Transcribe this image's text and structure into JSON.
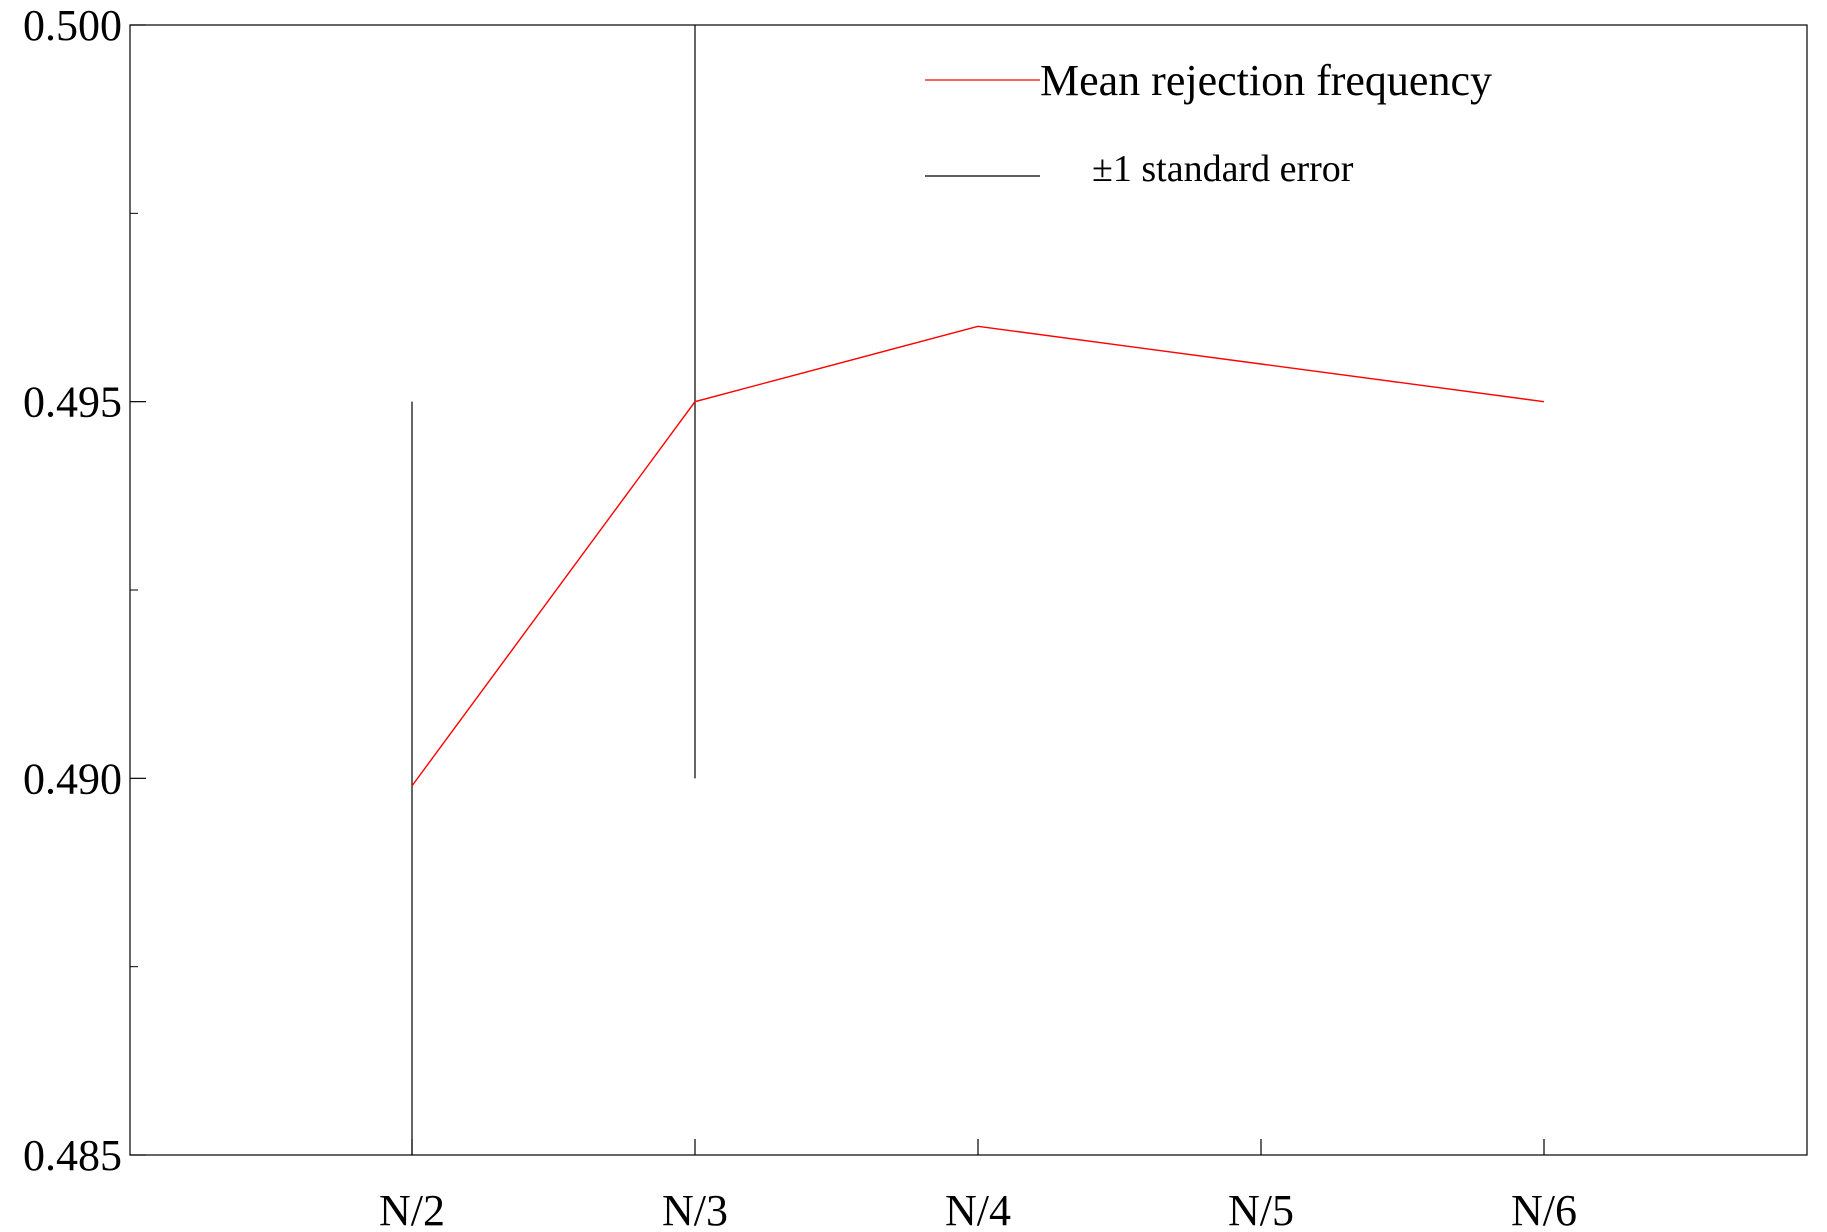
{
  "chart_data": {
    "type": "line",
    "title": "",
    "xlabel": "",
    "ylabel": "",
    "categories": [
      "N/2",
      "N/3",
      "N/4",
      "N/5",
      "N/6"
    ],
    "ylim": [
      0.485,
      0.5
    ],
    "yticks": [
      0.485,
      0.49,
      0.495,
      0.5
    ],
    "ytick_labels": [
      "0.485",
      "0.490",
      "0.495",
      "0.500"
    ],
    "y_minor_ticks": [
      0.4875,
      0.4925,
      0.4975
    ],
    "grid": false,
    "legend_position": "top-right",
    "series": [
      {
        "name": "Mean rejection frequency",
        "color": "#ff0000",
        "values": [
          0.4899,
          0.495,
          0.496,
          0.4955,
          0.495
        ]
      }
    ],
    "error_bars": {
      "name": "±1 standard error",
      "color": "#000000",
      "ranges": [
        [
          0.485,
          0.495
        ],
        [
          0.49,
          0.5
        ],
        null,
        null,
        null
      ]
    }
  }
}
